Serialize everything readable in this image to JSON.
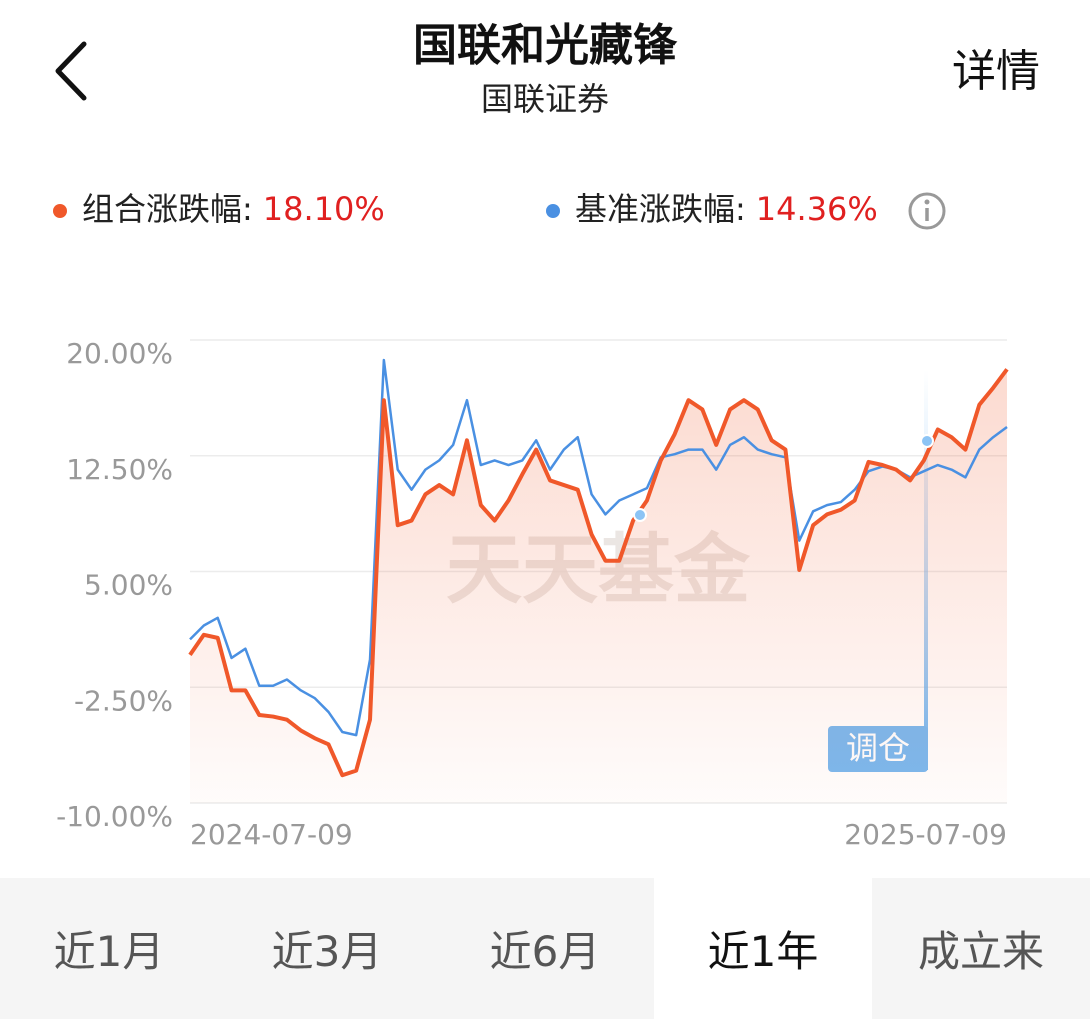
{
  "header": {
    "title": "国联和光藏锋",
    "subtitle": "国联证券",
    "action": "详情"
  },
  "chart_data": {
    "type": "line",
    "series": [
      {
        "name": "组合涨跌幅:",
        "change": "18.10%",
        "color": "#f0582a",
        "values": [
          -0.4,
          0.9,
          0.7,
          -2.7,
          -2.7,
          -4.3,
          -4.4,
          -4.6,
          -5.3,
          -5.8,
          -6.2,
          -8.2,
          -7.9,
          -4.6,
          16.1,
          8.0,
          8.3,
          10.0,
          10.6,
          10.0,
          13.5,
          9.3,
          8.3,
          9.6,
          11.3,
          12.9,
          10.9,
          10.6,
          10.3,
          7.4,
          5.7,
          5.7,
          8.3,
          9.6,
          12.2,
          13.9,
          16.1,
          15.5,
          13.2,
          15.5,
          16.1,
          15.5,
          13.5,
          12.9,
          5.1,
          8.0,
          8.7,
          9.0,
          9.6,
          12.1,
          11.9,
          11.6,
          10.9,
          12.2,
          14.2,
          13.7,
          12.9,
          15.8,
          16.9,
          18.1
        ]
      },
      {
        "name": "基准涨跌幅:",
        "change": "14.36%",
        "color": "#4a90e2",
        "values": [
          0.6,
          1.5,
          2.0,
          -0.6,
          0.0,
          -2.4,
          -2.4,
          -2.0,
          -2.7,
          -3.2,
          -4.1,
          -5.4,
          -5.6,
          -0.7,
          18.7,
          11.6,
          10.3,
          11.6,
          12.2,
          13.2,
          16.1,
          11.9,
          12.2,
          11.9,
          12.2,
          13.5,
          11.6,
          12.9,
          13.7,
          10.0,
          8.7,
          9.6,
          10.0,
          10.4,
          12.4,
          12.6,
          12.9,
          12.9,
          11.6,
          13.2,
          13.7,
          12.9,
          12.6,
          12.4,
          7.0,
          8.9,
          9.3,
          9.5,
          10.3,
          11.5,
          11.8,
          11.6,
          11.1,
          11.5,
          11.9,
          11.6,
          11.1,
          12.9,
          13.7,
          14.36
        ]
      }
    ],
    "categories": [
      "2024-07-09",
      null,
      null,
      null,
      null,
      null,
      null,
      null,
      null,
      null,
      null,
      null,
      null,
      null,
      null,
      null,
      null,
      null,
      null,
      null,
      null,
      null,
      null,
      null,
      null,
      null,
      null,
      null,
      null,
      null,
      null,
      null,
      null,
      null,
      null,
      null,
      null,
      null,
      null,
      null,
      null,
      null,
      null,
      null,
      null,
      null,
      null,
      null,
      null,
      null,
      null,
      null,
      null,
      null,
      null,
      null,
      null,
      null,
      null,
      "2025-07-09"
    ],
    "ylim": [
      -10,
      20
    ],
    "yticks": [
      {
        "value": 20,
        "label": "20.00%"
      },
      {
        "value": 12.5,
        "label": "12.50%"
      },
      {
        "value": 5,
        "label": "5.00%"
      },
      {
        "value": -2.5,
        "label": "-2.50%"
      },
      {
        "value": -10,
        "label": "-10.00%"
      }
    ],
    "grid": true,
    "annotation": "调仓",
    "watermark": "天天基金"
  },
  "tabs": {
    "items": [
      "近1月",
      "近3月",
      "近6月",
      "近1年",
      "成立来"
    ],
    "active": 3
  }
}
